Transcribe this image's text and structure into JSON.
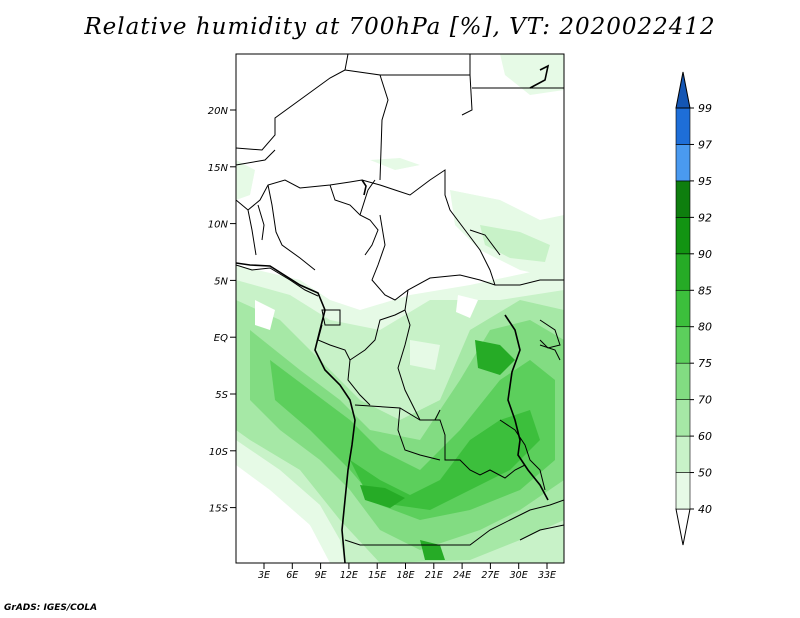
{
  "title": "Relative humidity at 700hPa [%], VT: 2020022412",
  "credit": "GrADS: IGES/COLA",
  "map": {
    "lat_labels": [
      "20N",
      "15N",
      "10N",
      "5N",
      "EQ",
      "5S",
      "10S",
      "15S"
    ],
    "lon_labels": [
      "3E",
      "6E",
      "9E",
      "12E",
      "15E",
      "18E",
      "21E",
      "24E",
      "27E",
      "30E",
      "33E"
    ]
  },
  "colorbar": {
    "levels": [
      "40",
      "50",
      "60",
      "70",
      "75",
      "80",
      "85",
      "90",
      "92",
      "95",
      "97",
      "99"
    ],
    "colors": [
      "#ffffff",
      "#e6fae6",
      "#c8f2c8",
      "#a6e8a6",
      "#82dc82",
      "#5ccf5c",
      "#3cbf3c",
      "#26ab26",
      "#129412",
      "#0e7e0e",
      "#4a9af0",
      "#1e6ed8",
      "#1456b4"
    ]
  }
}
